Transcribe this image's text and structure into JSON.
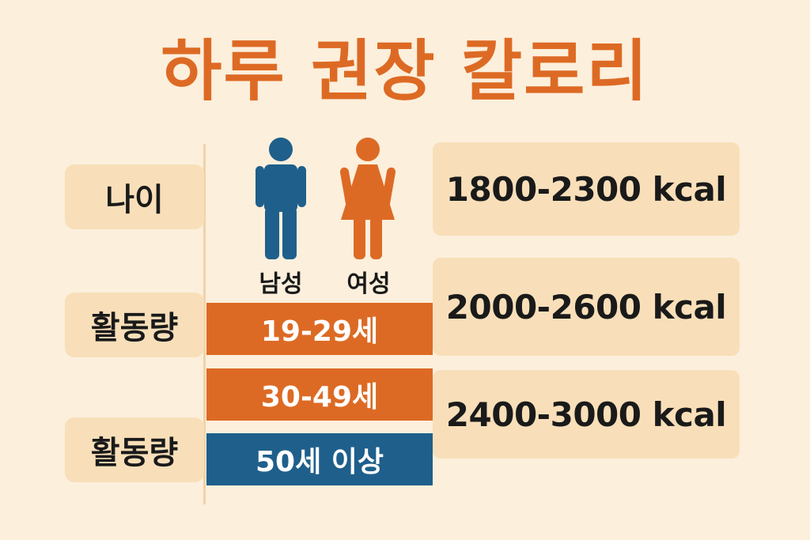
{
  "title": "하루 권장 칼로리",
  "row_labels": {
    "age": "나이",
    "activity_1": "활동량",
    "activity_2": "활동량"
  },
  "genders": {
    "male": "남성",
    "female": "여성"
  },
  "age_groups": {
    "group_1": "19-29세",
    "group_2": "30-49세",
    "group_3": "50세 이상"
  },
  "calories": {
    "range_1": "1800-2300 kcal",
    "range_2": "2000-2600 kcal",
    "range_3": "2400-3000 kcal"
  },
  "colors": {
    "background": "#fcefdc",
    "panel": "#f8dfb9",
    "orange": "#dd6a24",
    "blue": "#1f5f8b"
  },
  "icons": {
    "male": "male-person-icon",
    "female": "female-person-icon"
  }
}
